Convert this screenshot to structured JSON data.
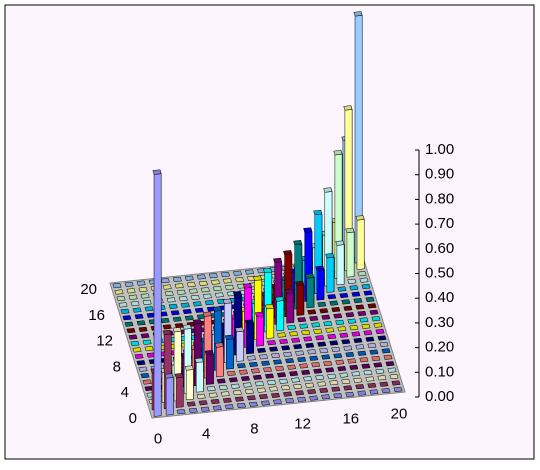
{
  "chart_data": {
    "type": "bar3d",
    "categories": [
      "0",
      null,
      null,
      null,
      "4",
      null,
      null,
      null,
      "8",
      null,
      null,
      null,
      "12",
      null,
      null,
      null,
      "16",
      null,
      null,
      null,
      "20"
    ],
    "depth_categories": [
      "0",
      null,
      null,
      null,
      "4",
      null,
      null,
      null,
      "8",
      null,
      null,
      null,
      "12",
      null,
      null,
      null,
      "16",
      null,
      null,
      null,
      "20"
    ],
    "zlim": [
      0,
      1
    ],
    "zticks": [
      {
        "value": 0,
        "label": "0.00"
      },
      {
        "value": 0.1,
        "label": "0.10"
      },
      {
        "value": 0.2,
        "label": "0.20"
      },
      {
        "value": 0.3,
        "label": "0.30"
      },
      {
        "value": 0.4,
        "label": "0.40"
      },
      {
        "value": 0.5,
        "label": "0.50"
      },
      {
        "value": 0.6,
        "label": "0.60"
      },
      {
        "value": 0.7,
        "label": "0.70"
      },
      {
        "value": 0.8,
        "label": "0.80"
      },
      {
        "value": 0.9,
        "label": "0.90"
      },
      {
        "value": 1,
        "label": "1.00"
      }
    ],
    "floor_color": "#c0c0c0",
    "series": [
      {
        "color": "#9999ff",
        "values": [
          0.98,
          0.15,
          0,
          0,
          0,
          0,
          0,
          0,
          0,
          0,
          0,
          0,
          0,
          0,
          0,
          0,
          0,
          0,
          0,
          0,
          0
        ]
      },
      {
        "color": "#993366",
        "values": [
          0.15,
          0.3,
          0.12,
          0,
          0,
          0,
          0,
          0,
          0,
          0,
          0,
          0,
          0,
          0,
          0,
          0,
          0,
          0,
          0,
          0,
          0
        ]
      },
      {
        "color": "#ffffcc",
        "values": [
          0,
          0.12,
          0.28,
          0.12,
          0,
          0,
          0,
          0,
          0,
          0,
          0,
          0,
          0,
          0,
          0,
          0,
          0,
          0,
          0,
          0,
          0
        ]
      },
      {
        "color": "#ccffff",
        "values": [
          0,
          0,
          0.12,
          0.26,
          0.12,
          0,
          0,
          0,
          0,
          0,
          0,
          0,
          0,
          0,
          0,
          0,
          0,
          0,
          0,
          0,
          0
        ]
      },
      {
        "color": "#660066",
        "values": [
          0,
          0,
          0,
          0.12,
          0.25,
          0.12,
          0,
          0,
          0,
          0,
          0,
          0,
          0,
          0,
          0,
          0,
          0,
          0,
          0,
          0,
          0
        ]
      },
      {
        "color": "#ff8080",
        "values": [
          0,
          0,
          0,
          0,
          0.12,
          0.25,
          0.12,
          0,
          0,
          0,
          0,
          0,
          0,
          0,
          0,
          0,
          0,
          0,
          0,
          0,
          0
        ]
      },
      {
        "color": "#0066cc",
        "values": [
          0,
          0,
          0,
          0,
          0,
          0.12,
          0.24,
          0.12,
          0,
          0,
          0,
          0,
          0,
          0,
          0,
          0,
          0,
          0,
          0,
          0,
          0
        ]
      },
      {
        "color": "#ccccff",
        "values": [
          0,
          0,
          0,
          0,
          0,
          0,
          0.12,
          0.24,
          0.12,
          0,
          0,
          0,
          0,
          0,
          0,
          0,
          0,
          0,
          0,
          0,
          0
        ]
      },
      {
        "color": "#000080",
        "values": [
          0,
          0,
          0,
          0,
          0,
          0,
          0,
          0.12,
          0.24,
          0.12,
          0,
          0,
          0,
          0,
          0,
          0,
          0,
          0,
          0,
          0,
          0
        ]
      },
      {
        "color": "#ff00ff",
        "values": [
          0,
          0,
          0,
          0,
          0,
          0,
          0,
          0,
          0.12,
          0.24,
          0.12,
          0,
          0,
          0,
          0,
          0,
          0,
          0,
          0,
          0,
          0
        ]
      },
      {
        "color": "#ffff00",
        "values": [
          0,
          0,
          0,
          0,
          0,
          0,
          0,
          0,
          0,
          0.12,
          0.24,
          0.12,
          0,
          0,
          0,
          0,
          0,
          0,
          0,
          0,
          0
        ]
      },
      {
        "color": "#00ffff",
        "values": [
          0,
          0,
          0,
          0,
          0,
          0,
          0,
          0,
          0,
          0,
          0.12,
          0.24,
          0.12,
          0,
          0,
          0,
          0,
          0,
          0,
          0,
          0
        ]
      },
      {
        "color": "#800080",
        "values": [
          0,
          0,
          0,
          0,
          0,
          0,
          0,
          0,
          0,
          0,
          0,
          0.12,
          0.25,
          0.12,
          0,
          0,
          0,
          0,
          0,
          0,
          0
        ]
      },
      {
        "color": "#800000",
        "values": [
          0,
          0,
          0,
          0,
          0,
          0,
          0,
          0,
          0,
          0,
          0,
          0,
          0.12,
          0.25,
          0.12,
          0,
          0,
          0,
          0,
          0,
          0
        ]
      },
      {
        "color": "#008080",
        "values": [
          0,
          0,
          0,
          0,
          0,
          0,
          0,
          0,
          0,
          0,
          0,
          0,
          0,
          0.12,
          0.26,
          0.12,
          0,
          0,
          0,
          0,
          0
        ]
      },
      {
        "color": "#0000ff",
        "values": [
          0,
          0,
          0,
          0,
          0,
          0,
          0,
          0,
          0,
          0,
          0,
          0,
          0,
          0,
          0.12,
          0.28,
          0.12,
          0,
          0,
          0,
          0
        ]
      },
      {
        "color": "#00ccff",
        "values": [
          0,
          0,
          0,
          0,
          0,
          0,
          0,
          0,
          0,
          0,
          0,
          0,
          0,
          0,
          0,
          0.14,
          0.32,
          0.14,
          0,
          0,
          0
        ]
      },
      {
        "color": "#ccffff",
        "values": [
          0,
          0,
          0,
          0,
          0,
          0,
          0,
          0,
          0,
          0,
          0,
          0,
          0,
          0,
          0,
          0,
          0.16,
          0.38,
          0.16,
          0,
          0
        ]
      },
      {
        "color": "#ccffcc",
        "values": [
          0,
          0,
          0,
          0,
          0,
          0,
          0,
          0,
          0,
          0,
          0,
          0,
          0,
          0,
          0,
          0,
          0,
          0.18,
          0.5,
          0.18,
          0
        ]
      },
      {
        "color": "#ffff99",
        "values": [
          0,
          0,
          0,
          0,
          0,
          0,
          0,
          0,
          0,
          0,
          0,
          0,
          0,
          0,
          0,
          0,
          0,
          0,
          0.2,
          0.65,
          0.2
        ]
      },
      {
        "color": "#99ccff",
        "values": [
          0,
          0,
          0,
          0,
          0,
          0,
          0,
          0,
          0,
          0,
          0,
          0,
          0,
          0,
          0,
          0,
          0,
          0,
          0,
          0.5,
          1
        ]
      }
    ]
  }
}
